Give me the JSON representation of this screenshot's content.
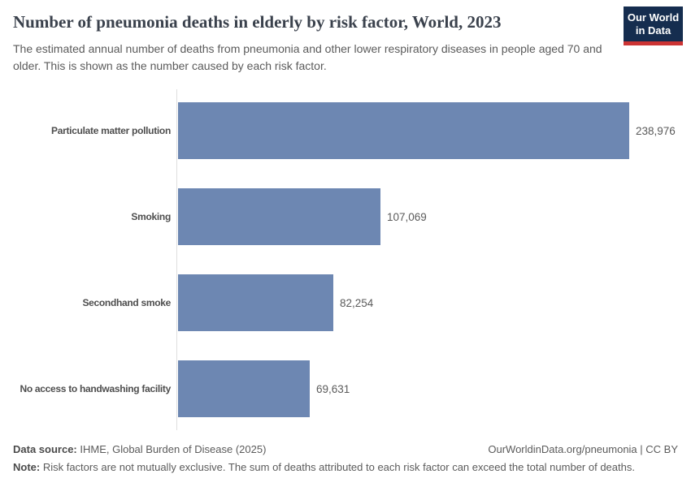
{
  "header": {
    "title": "Number of pneumonia deaths in elderly by risk factor, World, 2023",
    "subtitle": "The estimated annual number of deaths from pneumonia and other lower respiratory diseases in people aged 70 and older. This is shown as the number caused by each risk factor.",
    "logo": {
      "line1": "Our World",
      "line2": "in Data"
    }
  },
  "chart_data": {
    "type": "bar",
    "orientation": "horizontal",
    "title": "Number of pneumonia deaths in elderly by risk factor, World, 2023",
    "categories": [
      "Particulate matter pollution",
      "Smoking",
      "Secondhand smoke",
      "No access to handwashing facility"
    ],
    "values": [
      238976,
      107069,
      82254,
      69631
    ],
    "value_labels": [
      "238,976",
      "107,069",
      "82,254",
      "69,631"
    ],
    "xlim": [
      0,
      238976
    ],
    "grid": false,
    "legend": "none",
    "bar_color": "#6d87b2",
    "axis_color": "#dedede"
  },
  "footer": {
    "datasource_label": "Data source:",
    "datasource_text": " IHME, Global Burden of Disease (2025)",
    "credit": "OurWorldinData.org/pneumonia | CC BY",
    "note_label": "Note:",
    "note_text": " Risk factors are not mutually exclusive. The sum of deaths attributed to each risk factor can exceed the total number of deaths."
  },
  "colors": {
    "bar": "#6d87b2",
    "logo_navy": "#152d4f",
    "logo_red": "#cc3434",
    "title_text": "#3a414c",
    "body_text": "#5b5b5b"
  }
}
